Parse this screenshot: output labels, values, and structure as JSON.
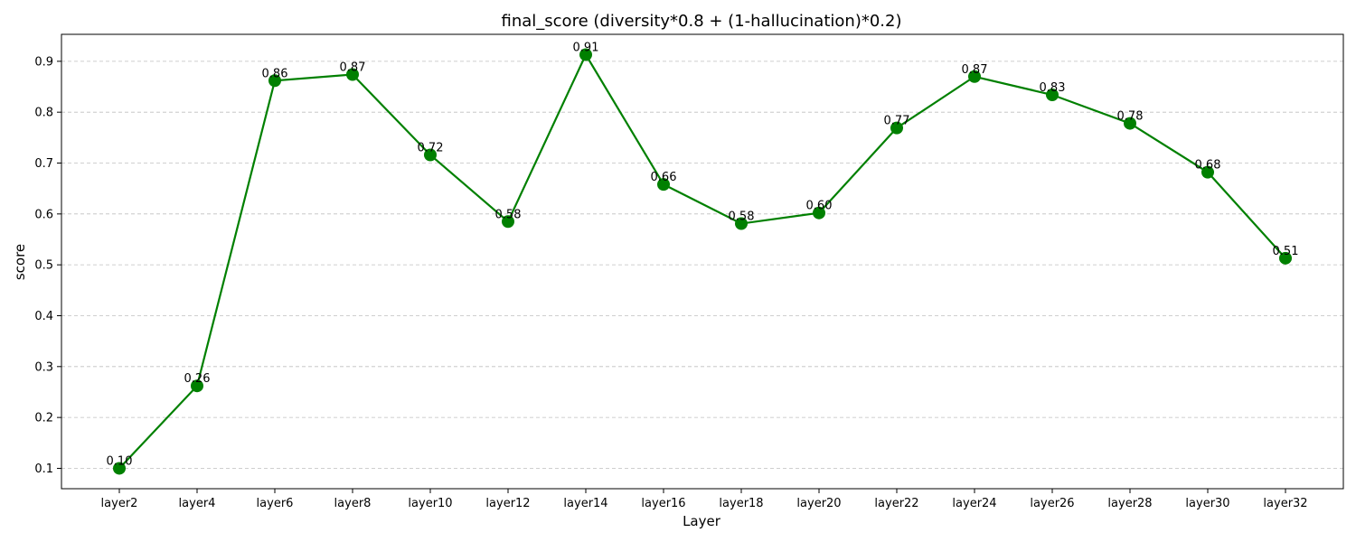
{
  "chart_data": {
    "type": "line",
    "title": "final_score (diversity*0.8 + (1-hallucination)*0.2)",
    "xlabel": "Layer",
    "ylabel": "score",
    "categories": [
      "layer2",
      "layer4",
      "layer6",
      "layer8",
      "layer10",
      "layer12",
      "layer14",
      "layer16",
      "layer18",
      "layer20",
      "layer22",
      "layer24",
      "layer26",
      "layer28",
      "layer30",
      "layer32"
    ],
    "values": [
      0.1,
      0.262,
      0.862,
      0.874,
      0.716,
      0.585,
      0.913,
      0.658,
      0.581,
      0.602,
      0.769,
      0.87,
      0.834,
      0.778,
      0.682,
      0.513
    ],
    "value_labels": [
      "0.10",
      "0.26",
      "0.86",
      "0.87",
      "0.72",
      "0.58",
      "0.91",
      "0.66",
      "0.58",
      "0.60",
      "0.77",
      "0.87",
      "0.83",
      "0.78",
      "0.68",
      "0.51"
    ],
    "yticks": [
      "0.1",
      "0.2",
      "0.3",
      "0.4",
      "0.5",
      "0.6",
      "0.7",
      "0.8",
      "0.9"
    ],
    "ylim": [
      0.06,
      0.953
    ],
    "grid": "y-dashed",
    "color": "#008000"
  }
}
